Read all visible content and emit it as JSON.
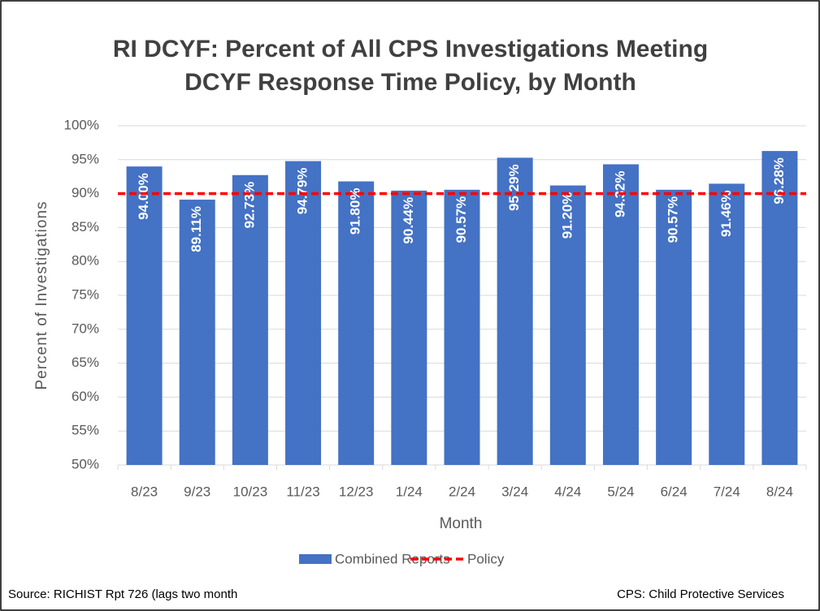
{
  "chart_data": {
    "type": "bar",
    "title": [
      "RI DCYF: Percent of All CPS Investigations Meeting",
      "DCYF Response Time Policy, by Month"
    ],
    "x_label": "Month",
    "y_label": "Percent of Investigations",
    "categories": [
      "8/23",
      "9/23",
      "10/23",
      "11/23",
      "12/23",
      "1/24",
      "2/24",
      "3/24",
      "4/24",
      "5/24",
      "6/24",
      "7/24",
      "8/24"
    ],
    "series": [
      {
        "name": "Combined Reports",
        "color": "#4472c4",
        "values": [
          94.0,
          89.11,
          92.73,
          94.79,
          91.8,
          90.44,
          90.57,
          95.29,
          91.2,
          94.32,
          90.57,
          91.46,
          96.28
        ],
        "value_labels": [
          "94.00%",
          "89.11%",
          "92.73%",
          "94.79%",
          "91.80%",
          "90.44%",
          "90.57%",
          "95.29%",
          "91.20%",
          "94.32%",
          "90.57%",
          "91.46%",
          "96.28%"
        ]
      }
    ],
    "reference_line": {
      "name": "Policy",
      "value": 90,
      "color": "#ff0000"
    },
    "ylim": [
      50,
      100
    ],
    "yticks": [
      {
        "value": 50,
        "label": "50%"
      },
      {
        "value": 55,
        "label": "55%"
      },
      {
        "value": 60,
        "label": "60%"
      },
      {
        "value": 65,
        "label": "65%"
      },
      {
        "value": 70,
        "label": "70%"
      },
      {
        "value": 75,
        "label": "75%"
      },
      {
        "value": 80,
        "label": "80%"
      },
      {
        "value": 85,
        "label": "85%"
      },
      {
        "value": 90,
        "label": "90%"
      },
      {
        "value": 95,
        "label": "95%"
      },
      {
        "value": 100,
        "label": "100%"
      }
    ],
    "grid": true,
    "legend": "bottom",
    "notes": [
      "Source: RICHIST Rpt 726 (lags two month",
      "CPS: Child Protective Services"
    ]
  }
}
